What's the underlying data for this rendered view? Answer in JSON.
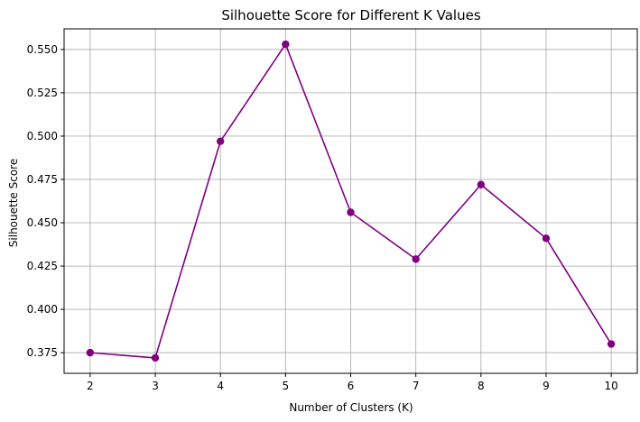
{
  "chart_data": {
    "type": "line",
    "title": "Silhouette Score for Different K Values",
    "xlabel": "Number of Clusters (K)",
    "ylabel": "Silhouette Score",
    "x": [
      2,
      3,
      4,
      5,
      6,
      7,
      8,
      9,
      10
    ],
    "series": [
      {
        "values": [
          0.375,
          0.372,
          0.497,
          0.553,
          0.456,
          0.429,
          0.472,
          0.441,
          0.38
        ],
        "color": "#800080",
        "marker": "circle"
      }
    ],
    "xticks": [
      2,
      3,
      4,
      5,
      6,
      7,
      8,
      9,
      10
    ],
    "yticks": [
      "0.375",
      "0.400",
      "0.425",
      "0.450",
      "0.475",
      "0.500",
      "0.525",
      "0.550"
    ],
    "xlim": [
      1.6,
      10.4
    ],
    "ylim": [
      0.3631,
      0.5619
    ],
    "grid": true,
    "legend": false
  }
}
